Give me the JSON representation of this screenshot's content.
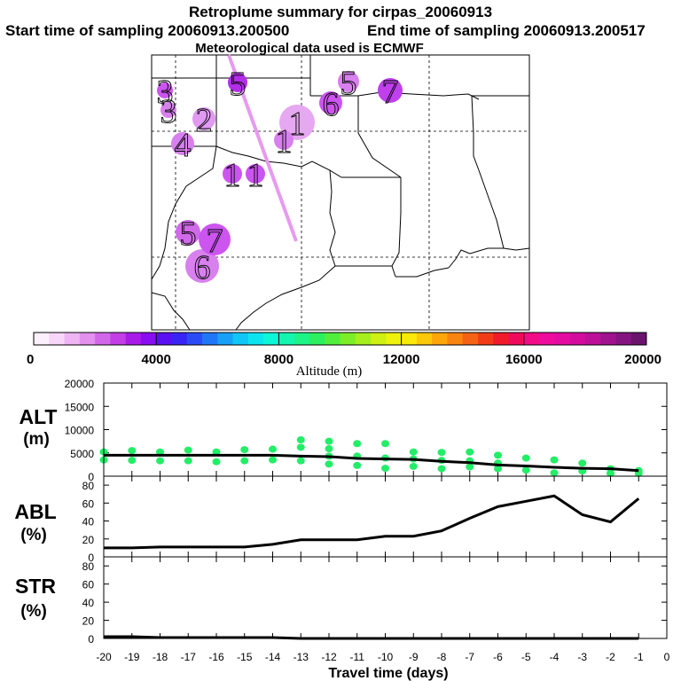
{
  "header": {
    "title": "Retroplume summary for cirpas_20060913",
    "start_label": "Start time of sampling 20060913.200500",
    "end_label": "End time of sampling 20060913.200517",
    "met_label": "Meteorological data used is ECMWF"
  },
  "colors": {
    "point_green": "#22ee66",
    "line": "#000000",
    "trajectory": "#e899f0"
  },
  "chart_data": [
    {
      "type": "map",
      "title": "Retroplume summary for cirpas_20060913",
      "plume_markers": [
        {
          "label": "1",
          "color": "#e6a8f0"
        },
        {
          "label": "1",
          "color": "#d880ee"
        },
        {
          "label": "1",
          "color": "#cc55f0"
        },
        {
          "label": "1",
          "color": "#cc55f0"
        },
        {
          "label": "2",
          "color": "#e09af2"
        },
        {
          "label": "3",
          "color": "#cc55f0"
        },
        {
          "label": "3",
          "color": "#d880ee"
        },
        {
          "label": "4",
          "color": "#d880ee"
        },
        {
          "label": "5",
          "color": "#b32ee8"
        },
        {
          "label": "5",
          "color": "#d880ee"
        },
        {
          "label": "5",
          "color": "#d06ae8"
        },
        {
          "label": "6",
          "color": "#cc55f0"
        },
        {
          "label": "6",
          "color": "#d880ee"
        },
        {
          "label": "7",
          "color": "#c040ee"
        },
        {
          "label": "7",
          "color": "#cc55f0"
        }
      ]
    },
    {
      "type": "colorbar",
      "xlabel": "Altitude (m)",
      "range": [
        0,
        20000
      ],
      "tick_labels": [
        "0",
        "4000",
        "8000",
        "12000",
        "16000",
        "20000"
      ],
      "colors": [
        "#fdf0fd",
        "#f7d6f9",
        "#efb5f3",
        "#e390ee",
        "#d367ea",
        "#c23ee6",
        "#a81ae8",
        "#8a0cf0",
        "#5a10f2",
        "#3a24f4",
        "#2a4cf6",
        "#1f76f8",
        "#17a0f8",
        "#10c6f6",
        "#0ce4f0",
        "#0cf6d8",
        "#12f6b0",
        "#1cf488",
        "#2cf060",
        "#52ee3c",
        "#7cee28",
        "#a6ee1c",
        "#cef012",
        "#eef20c",
        "#fce80a",
        "#fcc80a",
        "#fca60c",
        "#fa8410",
        "#f66214",
        "#f23c18",
        "#f01a2a",
        "#f00a5a",
        "#f20c86",
        "#ee0c9e",
        "#e40ca0",
        "#d40c9e",
        "#bc1098",
        "#a0128e",
        "#841480",
        "#6a146e"
      ]
    },
    {
      "type": "scatter",
      "name": "ALT",
      "ylabel": "ALT (m)",
      "ylim": [
        0,
        20000
      ],
      "yticks": [
        0,
        5000,
        10000,
        15000,
        20000
      ],
      "x": [
        -20,
        -19,
        -18,
        -17,
        -16,
        -15,
        -14,
        -13,
        -12,
        -11,
        -10,
        -9,
        -8,
        -7,
        -6,
        -5,
        -4,
        -3,
        -2,
        -1
      ],
      "points": [
        [
          -20,
          3500
        ],
        [
          -20,
          5200
        ],
        [
          -19,
          3400
        ],
        [
          -19,
          5500
        ],
        [
          -18,
          3300
        ],
        [
          -18,
          5200
        ],
        [
          -17,
          3300
        ],
        [
          -17,
          5600
        ],
        [
          -16,
          3100
        ],
        [
          -16,
          5200
        ],
        [
          -15,
          3300
        ],
        [
          -15,
          5700
        ],
        [
          -14,
          3500
        ],
        [
          -14,
          5800
        ],
        [
          -13,
          3300
        ],
        [
          -13,
          6200
        ],
        [
          -13,
          7800
        ],
        [
          -12,
          2600
        ],
        [
          -12,
          4300
        ],
        [
          -12,
          5900
        ],
        [
          -12,
          7500
        ],
        [
          -11,
          2300
        ],
        [
          -11,
          4300
        ],
        [
          -11,
          7000
        ],
        [
          -10,
          1700
        ],
        [
          -10,
          3900
        ],
        [
          -10,
          7000
        ],
        [
          -9,
          2100
        ],
        [
          -9,
          3700
        ],
        [
          -9,
          5200
        ],
        [
          -8,
          1600
        ],
        [
          -8,
          3400
        ],
        [
          -8,
          5100
        ],
        [
          -7,
          2000
        ],
        [
          -7,
          3300
        ],
        [
          -7,
          5200
        ],
        [
          -6,
          1600
        ],
        [
          -6,
          2800
        ],
        [
          -6,
          4500
        ],
        [
          -5,
          1300
        ],
        [
          -5,
          3900
        ],
        [
          -4,
          700
        ],
        [
          -4,
          3500
        ],
        [
          -3,
          1100
        ],
        [
          -3,
          2800
        ],
        [
          -2,
          1600
        ],
        [
          -2,
          600
        ],
        [
          -1,
          1200
        ],
        [
          -1,
          600
        ]
      ],
      "line": [
        4500,
        4500,
        4500,
        4500,
        4500,
        4500,
        4500,
        4300,
        4200,
        3800,
        3700,
        3600,
        3200,
        2900,
        2400,
        2200,
        1900,
        1700,
        1600,
        1200
      ]
    },
    {
      "type": "line",
      "name": "ABL",
      "ylabel": "ABL (%)",
      "ylim": [
        0,
        90
      ],
      "yticks": [
        0,
        20,
        40,
        60,
        80
      ],
      "x": [
        -20,
        -19,
        -18,
        -17,
        -16,
        -15,
        -14,
        -13,
        -12,
        -11,
        -10,
        -9,
        -8,
        -7,
        -6,
        -5,
        -4,
        -3,
        -2,
        -1
      ],
      "values": [
        10,
        10,
        11,
        11,
        11,
        11,
        14,
        19,
        19,
        19,
        23,
        23,
        29,
        43,
        56,
        62,
        68,
        47,
        39,
        65
      ]
    },
    {
      "type": "line",
      "name": "STR",
      "ylabel": "STR (%)",
      "ylim": [
        0,
        90
      ],
      "yticks": [
        0,
        20,
        40,
        60,
        80
      ],
      "x": [
        -20,
        -19,
        -18,
        -17,
        -16,
        -15,
        -14,
        -13,
        -12,
        -11,
        -10,
        -9,
        -8,
        -7,
        -6,
        -5,
        -4,
        -3,
        -2,
        -1
      ],
      "values": [
        2,
        2,
        1,
        1,
        1,
        1,
        1,
        0,
        0,
        0,
        0,
        0,
        0,
        0,
        0,
        0,
        0,
        0,
        0,
        0
      ],
      "xlabel": "Travel time (days)",
      "xlim": [
        -20,
        0
      ],
      "xticks": [
        -20,
        -19,
        -18,
        -17,
        -16,
        -15,
        -14,
        -13,
        -12,
        -11,
        -10,
        -9,
        -8,
        -7,
        -6,
        -5,
        -4,
        -3,
        -2,
        -1,
        0
      ]
    }
  ]
}
